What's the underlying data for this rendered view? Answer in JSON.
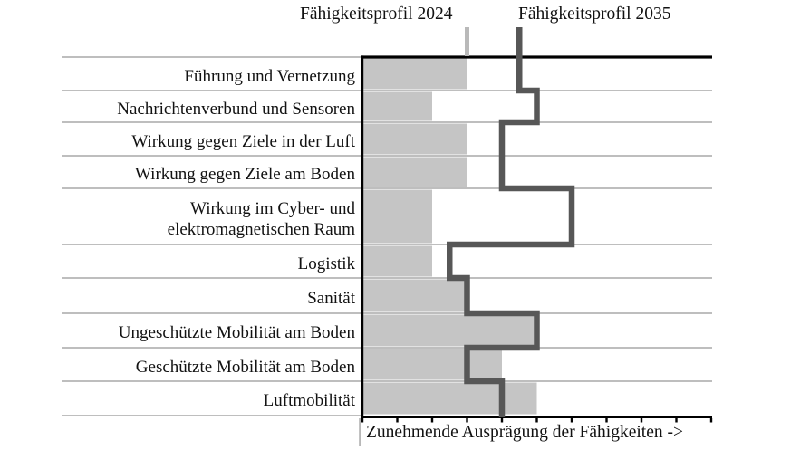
{
  "page": {
    "background": "#ffffff"
  },
  "chart_data": {
    "type": "bar",
    "orientation": "horizontal",
    "title": "",
    "xlabel": "Zunehmende Ausprägung der Fähigkeiten ->",
    "ylabel": "",
    "x_range": [
      0,
      10
    ],
    "gridlines": "row-separator-lines",
    "legend_position": "top",
    "axis_color": "#000000",
    "separator_color": "#a9a9a9",
    "categories": [
      "Führung und Vernetzung",
      "Nachrichtenverbund und Sensoren",
      "Wirkung gegen Ziele in der Luft",
      "Wirkung gegen Ziele am Boden",
      "Wirkung im Cyber- und\nelektromagnetischen Raum",
      "Logistik",
      "Sanität",
      "Ungeschützte Mobilität am Boden",
      "Geschützte Mobilität am Boden",
      "Luftmobilität"
    ],
    "series": [
      {
        "name": "Fähigkeitsprofil 2024",
        "style": "bar",
        "color": "#c5c5c5",
        "legend_marker_color": "#b9b9b9",
        "values": [
          3,
          2,
          3,
          3,
          2,
          2,
          3,
          5,
          4,
          5
        ]
      },
      {
        "name": "Fähigkeitsprofil 2035",
        "style": "step-line",
        "color": "#575757",
        "values": [
          4.5,
          5,
          4,
          4,
          6,
          2.5,
          3,
          5,
          3,
          4
        ]
      }
    ]
  }
}
